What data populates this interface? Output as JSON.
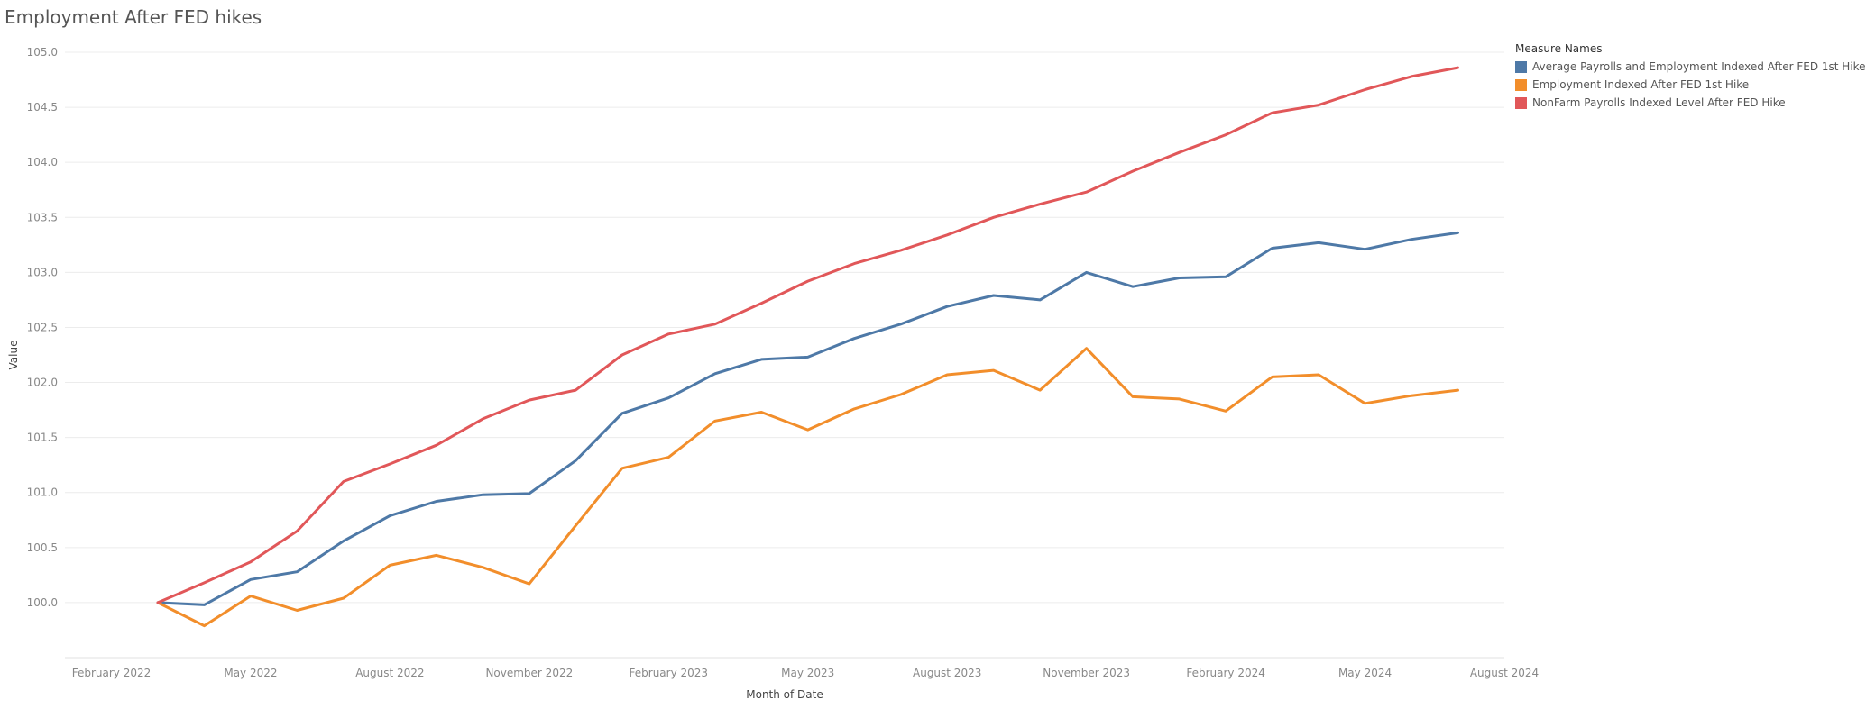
{
  "chart_data": {
    "type": "line",
    "title": "Employment After FED hikes",
    "xlabel": "Month of Date",
    "ylabel": "Value",
    "ylim": [
      99.5,
      105.0
    ],
    "y_ticks": [
      "100.0",
      "100.5",
      "101.0",
      "101.5",
      "102.0",
      "102.5",
      "103.0",
      "103.5",
      "104.0",
      "104.5",
      "105.0"
    ],
    "x_ticks": [
      {
        "label": "February 2022",
        "date": "2022-02"
      },
      {
        "label": "May 2022",
        "date": "2022-05"
      },
      {
        "label": "August 2022",
        "date": "2022-08"
      },
      {
        "label": "November 2022",
        "date": "2022-11"
      },
      {
        "label": "February 2023",
        "date": "2023-02"
      },
      {
        "label": "May 2023",
        "date": "2023-05"
      },
      {
        "label": "August 2023",
        "date": "2023-08"
      },
      {
        "label": "November 2023",
        "date": "2023-11"
      },
      {
        "label": "February 2024",
        "date": "2024-02"
      },
      {
        "label": "May 2024",
        "date": "2024-05"
      },
      {
        "label": "August 2024",
        "date": "2024-08"
      }
    ],
    "xlim": [
      "2022-01",
      "2024-08"
    ],
    "x": [
      "2022-03",
      "2022-04",
      "2022-05",
      "2022-06",
      "2022-07",
      "2022-08",
      "2022-09",
      "2022-10",
      "2022-11",
      "2022-12",
      "2023-01",
      "2023-02",
      "2023-03",
      "2023-04",
      "2023-05",
      "2023-06",
      "2023-07",
      "2023-08",
      "2023-09",
      "2023-10",
      "2023-11",
      "2023-12",
      "2024-01",
      "2024-02",
      "2024-03",
      "2024-04",
      "2024-05",
      "2024-06",
      "2024-07"
    ],
    "legend_title": "Measure Names",
    "legend_position": "top-right",
    "grid": true,
    "series": [
      {
        "name": "Average Payrolls and Employment Indexed After FED 1st Hike",
        "color": "#4e79a7",
        "values": [
          100.0,
          99.98,
          100.21,
          100.28,
          100.56,
          100.79,
          100.92,
          100.98,
          100.99,
          101.29,
          101.72,
          101.86,
          102.08,
          102.21,
          102.23,
          102.4,
          102.53,
          102.69,
          102.79,
          102.75,
          103.0,
          102.87,
          102.95,
          102.96,
          103.22,
          103.27,
          103.21,
          103.3,
          103.36
        ]
      },
      {
        "name": "Employment Indexed After FED 1st Hike",
        "color": "#f28e2b",
        "values": [
          100.0,
          99.79,
          100.06,
          99.93,
          100.04,
          100.34,
          100.43,
          100.32,
          100.17,
          100.7,
          101.22,
          101.32,
          101.65,
          101.73,
          101.57,
          101.76,
          101.89,
          102.07,
          102.11,
          101.93,
          102.31,
          101.87,
          101.85,
          101.74,
          102.05,
          102.07,
          101.81,
          101.88,
          101.93
        ]
      },
      {
        "name": "NonFarm Payrolls Indexed Level After FED Hike",
        "color": "#e15759",
        "values": [
          100.0,
          100.18,
          100.37,
          100.65,
          101.1,
          101.26,
          101.43,
          101.67,
          101.84,
          101.93,
          102.25,
          102.44,
          102.53,
          102.72,
          102.92,
          103.08,
          103.2,
          103.34,
          103.5,
          103.62,
          103.73,
          103.92,
          104.09,
          104.25,
          104.45,
          104.52,
          104.66,
          104.78,
          104.86
        ]
      }
    ]
  }
}
